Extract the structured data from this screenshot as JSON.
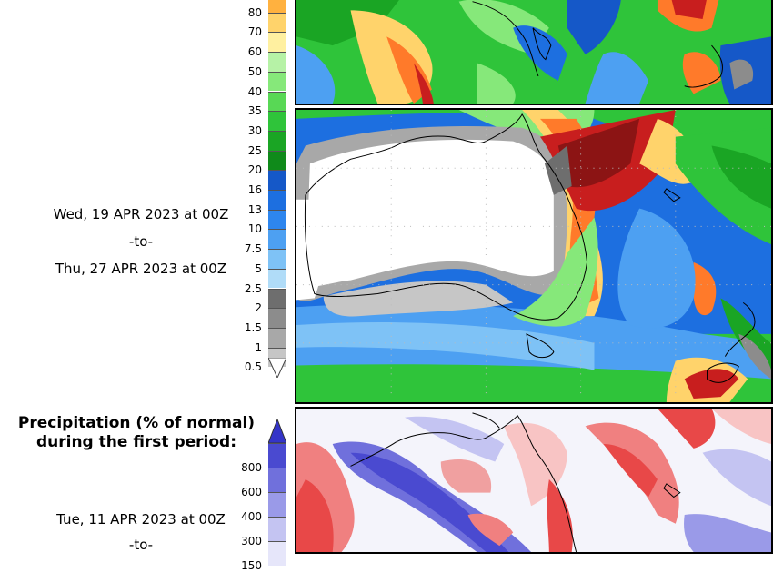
{
  "precip_scale": {
    "ticks": [
      "80",
      "70",
      "60",
      "50",
      "40",
      "35",
      "30",
      "25",
      "20",
      "16",
      "13",
      "10",
      "7.5",
      "5",
      "2.5",
      "2",
      "1.5",
      "1",
      "0.5"
    ],
    "colors": [
      "#ffb13f",
      "#ffd36b",
      "#fff0a0",
      "#b6f2a6",
      "#86e87a",
      "#58d855",
      "#2fc43a",
      "#1aa524",
      "#0f8a1a",
      "#1558c8",
      "#1d6fe0",
      "#2e86ee",
      "#4da0f2",
      "#7ec2f6",
      "#b0dcf8",
      "#6e6e6e",
      "#8c8c8c",
      "#a8a8a8",
      "#c6c6c6"
    ]
  },
  "second_period": {
    "from": "Wed, 19 APR 2023 at 00Z",
    "sep": "-to-",
    "to": "Thu, 27 APR 2023 at 00Z"
  },
  "normal_section": {
    "title_line1": "Precipitation (% of normal)",
    "title_line2": "during the first period:",
    "ticks": [
      "800",
      "600",
      "400",
      "300",
      "150"
    ],
    "colors": [
      "#4a4ad0",
      "#7070dc",
      "#9a9ae8",
      "#c4c4f2",
      "#e6e6fa"
    ],
    "first_period_from": "Tue, 11 APR 2023 at 00Z",
    "first_period_sep": "-to-"
  },
  "icons": {
    "under_arrow": "down-triangle-icon",
    "over_arrow": "up-triangle-icon"
  }
}
